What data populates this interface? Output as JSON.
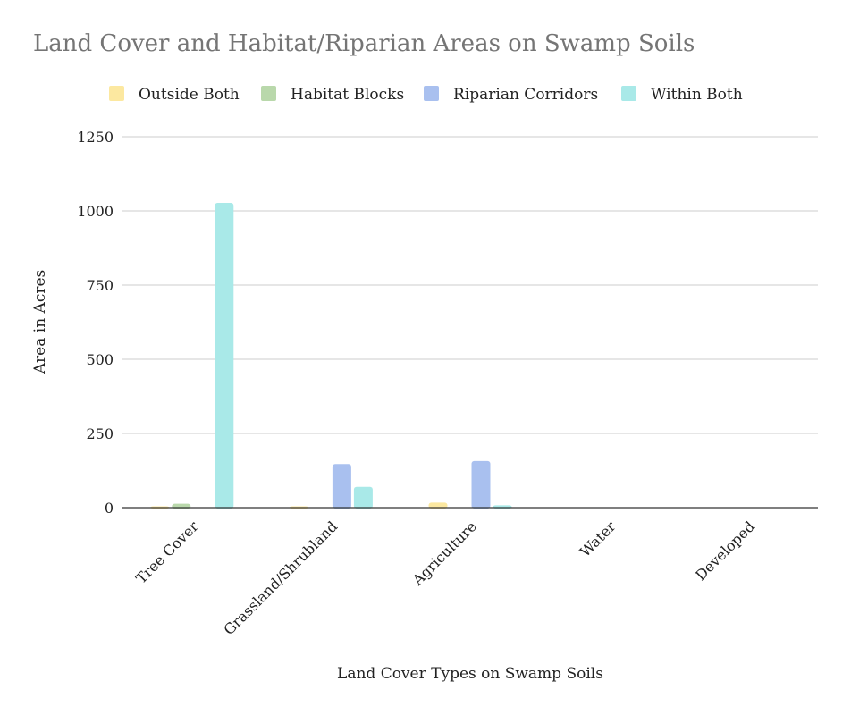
{
  "chart_data": {
    "type": "bar",
    "title": "Land Cover and Habitat/Riparian Areas on Swamp Soils",
    "xlabel": "Land Cover Types on Swamp Soils",
    "ylabel": "Area in Acres",
    "categories": [
      "Tree Cover",
      "Grassland/Shrubland",
      "Agriculture",
      "Water",
      "Developed"
    ],
    "series": [
      {
        "name": "Outside Both",
        "color": "#fce8a0",
        "values": [
          1,
          1,
          17,
          0,
          0
        ]
      },
      {
        "name": "Habitat Blocks",
        "color": "#b9d8ab",
        "values": [
          13,
          0,
          0,
          0,
          0
        ]
      },
      {
        "name": "Riparian Corridors",
        "color": "#a9c0ef",
        "values": [
          0,
          147,
          157,
          0,
          0
        ]
      },
      {
        "name": "Within Both",
        "color": "#a9e9e8",
        "values": [
          1027,
          70,
          8,
          0,
          0
        ]
      }
    ],
    "ylim": [
      0,
      1250
    ],
    "yticks": [
      0,
      250,
      500,
      750,
      1000,
      1250
    ],
    "grid": true,
    "legend_position": "top"
  }
}
